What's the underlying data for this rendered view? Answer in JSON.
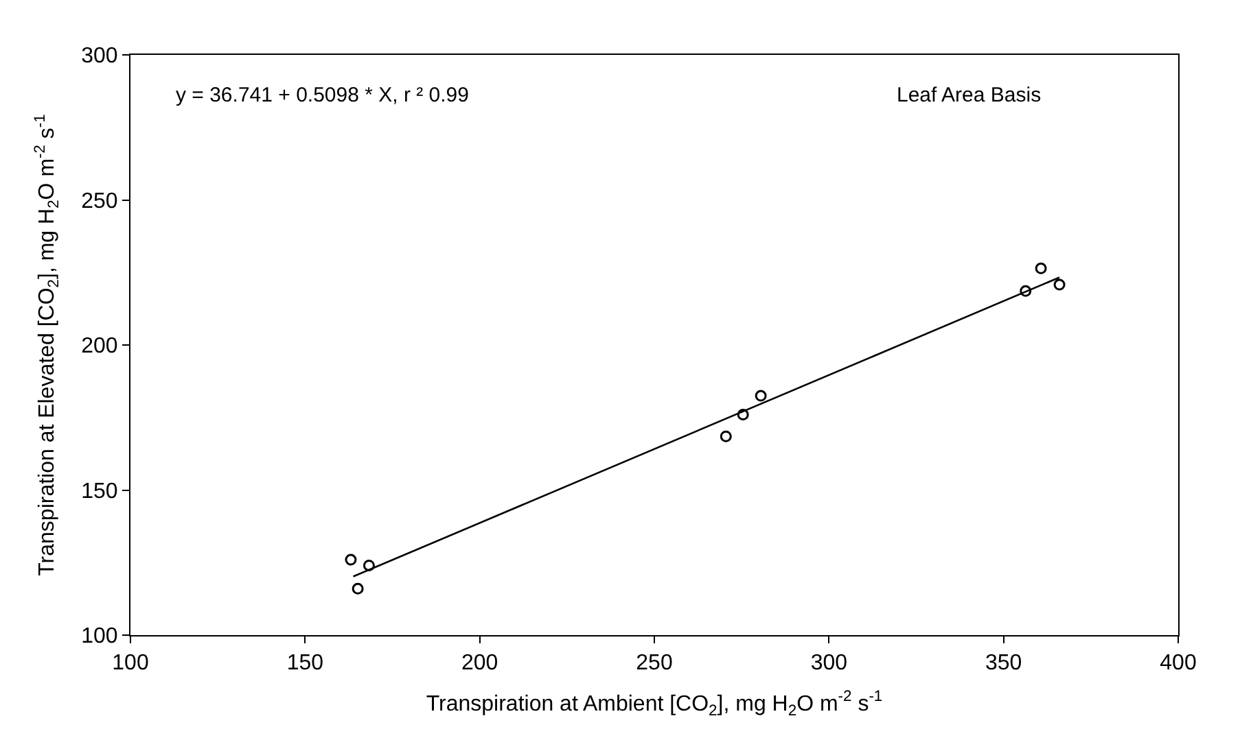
{
  "chart_data": {
    "type": "scatter",
    "xlabel": "Transpiration at Ambient [CO$_{2}$], mg H$_{2}$O m$^{-2}$ s$^{-1}$",
    "ylabel": "Transpiration at Elevated [CO$_{2}$], mg H$_{2}$O m$^{-2}$ s$^{-1}$",
    "annotations": [
      "y = 36.741 + 0.5098 * X, r ² 0.99",
      "Leaf Area Basis"
    ],
    "series": [
      {
        "color": "#000000",
        "marker": "circle",
        "x": [
          163.1,
          168.3,
          165.1,
          270.5,
          275.4,
          280.5,
          356.3,
          360.7,
          366.0
        ],
        "values": [
          126,
          124,
          116,
          168.5,
          176,
          182.5,
          218.6,
          226.4,
          220.8
        ]
      },
      {
        "type": "line",
        "color": "#000000",
        "line_style": "solid",
        "x": [
          163.8,
          366.0
        ],
        "values": [
          120.2,
          223.3
        ]
      }
    ],
    "xlim": [
      100,
      400
    ],
    "xticks": [
      100,
      150,
      200,
      250,
      300,
      350,
      400
    ],
    "ylim": [
      100,
      300
    ],
    "yticks": [
      100,
      150,
      200,
      250,
      300
    ],
    "grid": false
  }
}
